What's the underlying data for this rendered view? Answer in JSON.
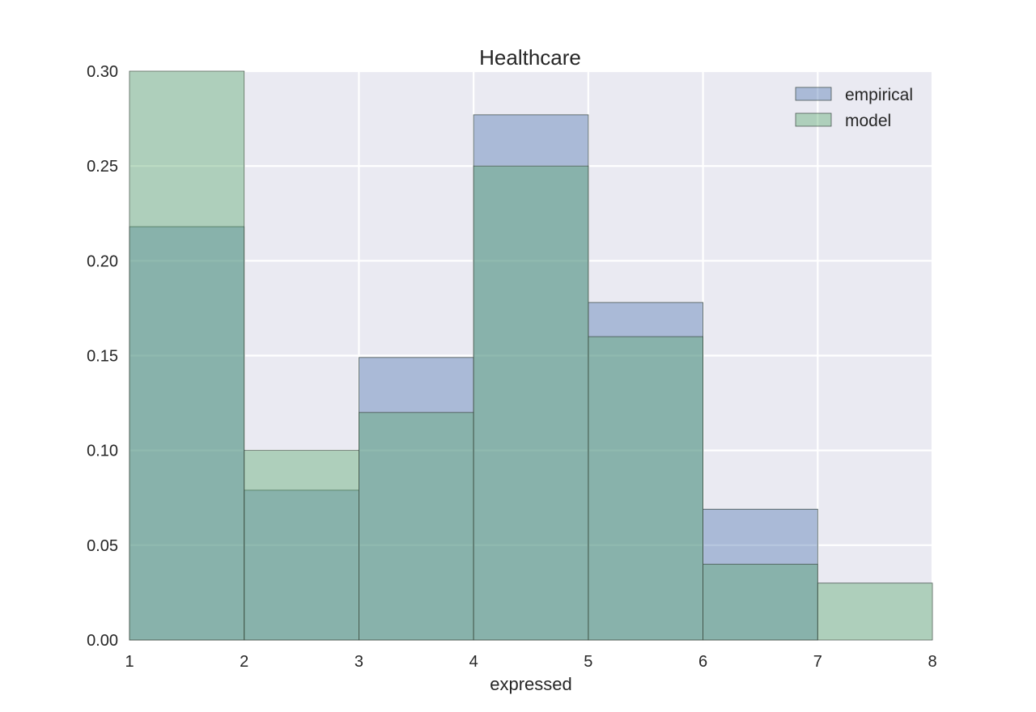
{
  "chart_data": {
    "type": "bar",
    "title": "Healthcare",
    "xlabel": "expressed",
    "ylabel": "",
    "xlim": [
      1,
      8
    ],
    "ylim": [
      0,
      0.3
    ],
    "xticks": [
      1,
      2,
      3,
      4,
      5,
      6,
      7,
      8
    ],
    "xtick_labels": [
      "1",
      "2",
      "3",
      "4",
      "5",
      "6",
      "7",
      "8"
    ],
    "yticks": [
      0,
      0.05,
      0.1,
      0.15,
      0.2,
      0.25,
      0.3
    ],
    "ytick_labels": [
      "0.00",
      "0.05",
      "0.10",
      "0.15",
      "0.20",
      "0.25",
      "0.30"
    ],
    "bin_edges": [
      1,
      2,
      3,
      4,
      5,
      6,
      7,
      8
    ],
    "grid": true,
    "legend_position": "top-right",
    "series": [
      {
        "name": "empirical",
        "color": "#4c72b0",
        "values": [
          0.218,
          0.079,
          0.149,
          0.277,
          0.178,
          0.069,
          0.0
        ]
      },
      {
        "name": "model",
        "color": "#55a868",
        "values": [
          0.3,
          0.1,
          0.12,
          0.25,
          0.16,
          0.04,
          0.03
        ]
      }
    ],
    "colors": {
      "plot_background": "#eaeaf2",
      "grid": "#ffffff",
      "text": "#262626",
      "bar_edge": "#3d4a45"
    }
  }
}
